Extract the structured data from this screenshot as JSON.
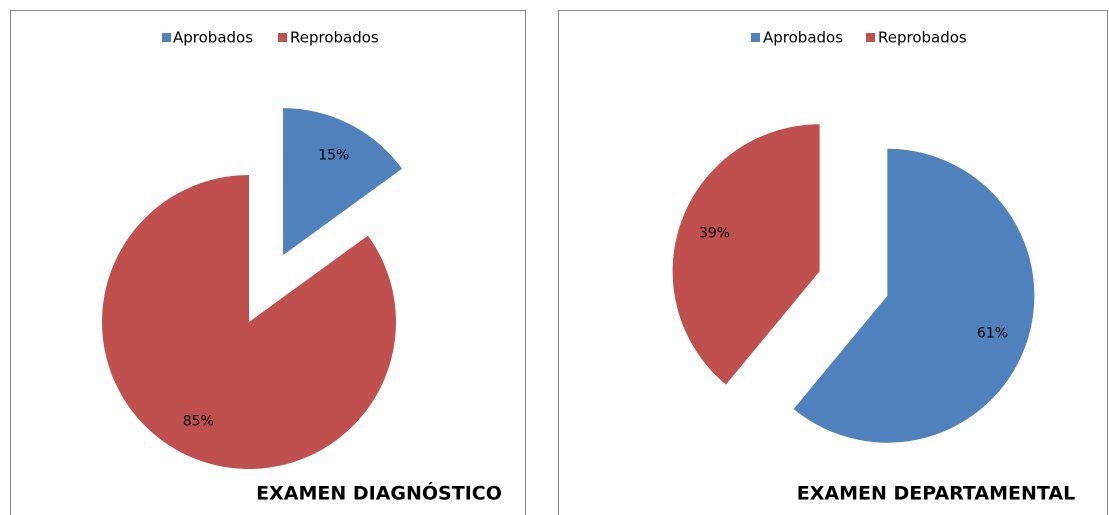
{
  "chart_data": [
    {
      "type": "pie",
      "title": "EXAMEN DIAGNÓSTICO",
      "categories": [
        "Aprobados",
        "Reprobados"
      ],
      "values": [
        15,
        85
      ],
      "value_labels": [
        "15%",
        "85%"
      ],
      "colors": [
        "#4f81bd",
        "#c0504d"
      ],
      "legend": "top"
    },
    {
      "type": "pie",
      "title": "EXAMEN DEPARTAMENTAL",
      "categories": [
        "Aprobados",
        "Reprobados"
      ],
      "values": [
        61,
        39
      ],
      "value_labels": [
        "61%",
        "39%"
      ],
      "colors": [
        "#4f81bd",
        "#c0504d"
      ],
      "legend": "top"
    }
  ]
}
